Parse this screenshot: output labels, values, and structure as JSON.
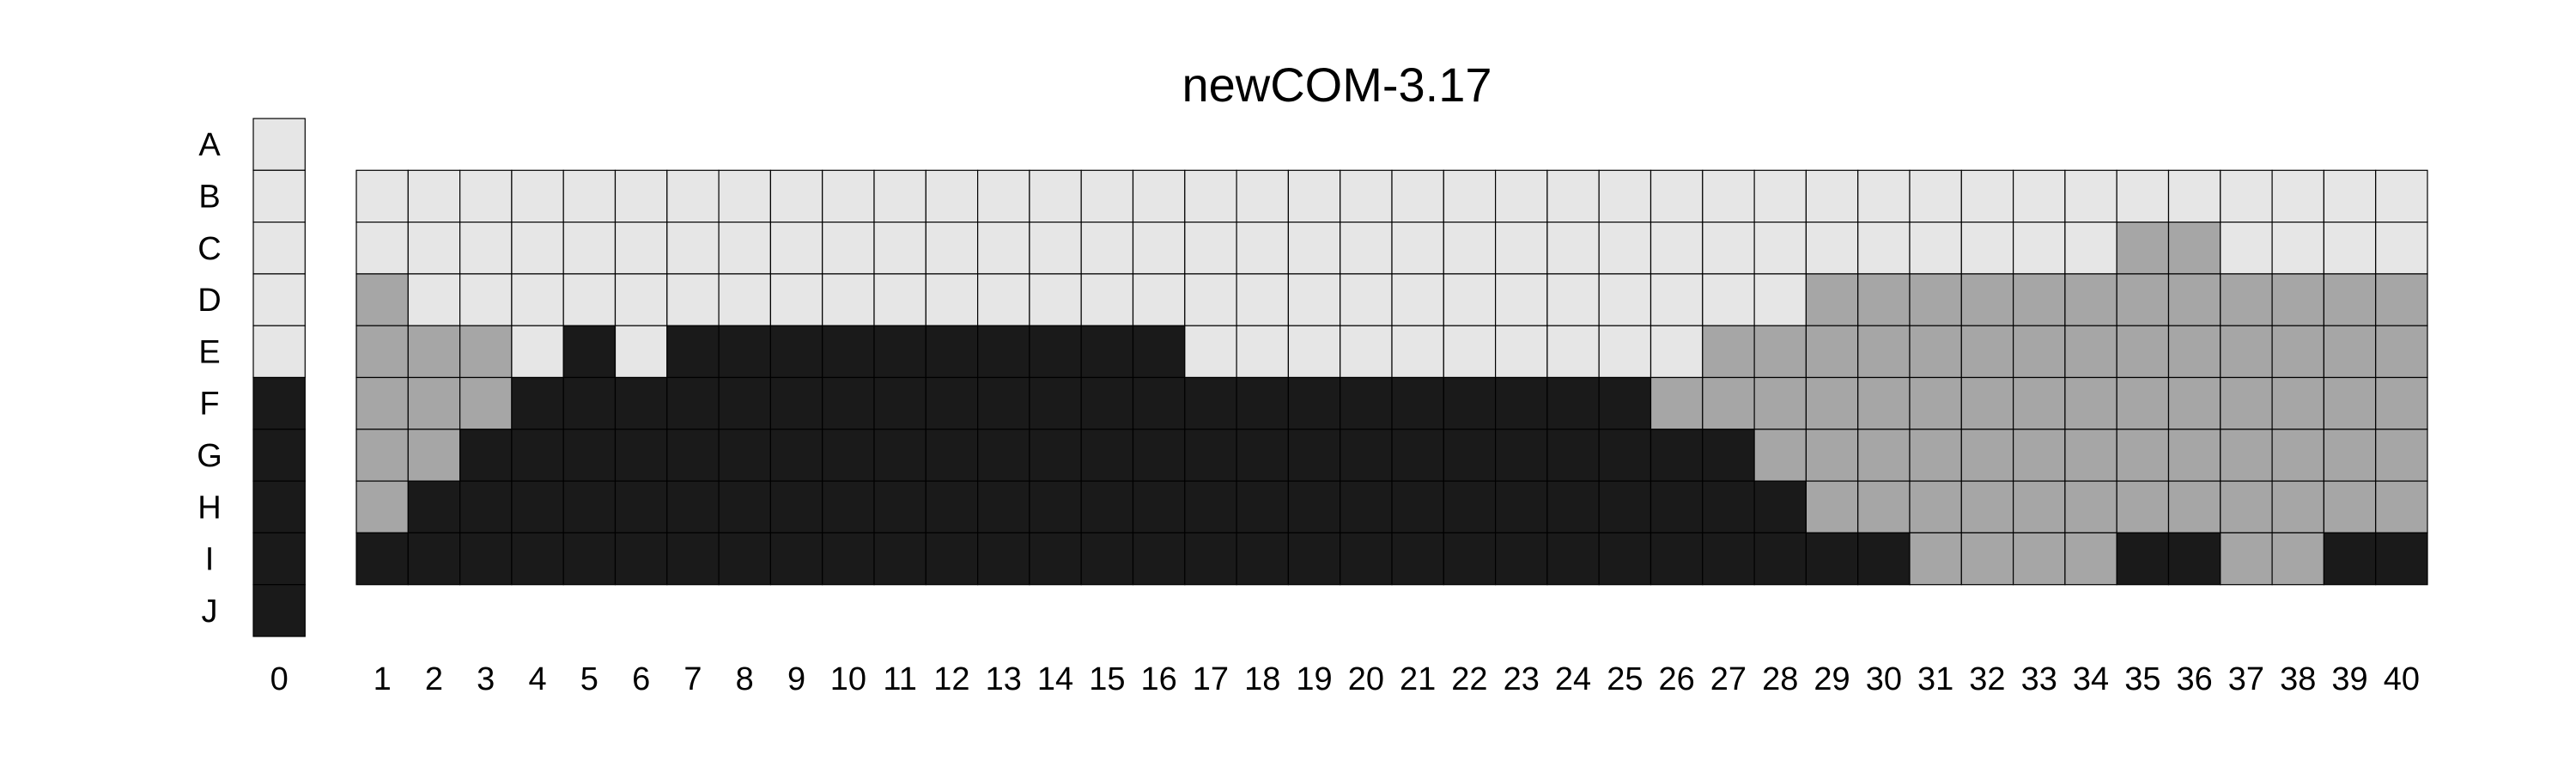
{
  "chart_data": {
    "type": "heatmap",
    "title": "newCOM-3.17",
    "row_labels": [
      "A",
      "B",
      "C",
      "D",
      "E",
      "F",
      "G",
      "H",
      "I",
      "J"
    ],
    "reference_column": {
      "label": "0",
      "values": [
        0,
        0,
        0,
        0,
        0,
        2,
        2,
        2,
        2,
        2
      ]
    },
    "column_labels": [
      "1",
      "2",
      "3",
      "4",
      "5",
      "6",
      "7",
      "8",
      "9",
      "10",
      "11",
      "12",
      "13",
      "14",
      "15",
      "16",
      "17",
      "18",
      "19",
      "20",
      "21",
      "22",
      "23",
      "24",
      "25",
      "26",
      "27",
      "28",
      "29",
      "30",
      "31",
      "32",
      "33",
      "34",
      "35",
      "36",
      "37",
      "38",
      "39",
      "40"
    ],
    "grid_rows": [
      "B",
      "C",
      "D",
      "E",
      "F",
      "G",
      "H",
      "I"
    ],
    "grid": [
      [
        0,
        0,
        0,
        0,
        0,
        0,
        0,
        0,
        0,
        0,
        0,
        0,
        0,
        0,
        0,
        0,
        0,
        0,
        0,
        0,
        0,
        0,
        0,
        0,
        0,
        0,
        0,
        0,
        0,
        0,
        0,
        0,
        0,
        0,
        0,
        0,
        0,
        0,
        0,
        0
      ],
      [
        0,
        0,
        0,
        0,
        0,
        0,
        0,
        0,
        0,
        0,
        0,
        0,
        0,
        0,
        0,
        0,
        0,
        0,
        0,
        0,
        0,
        0,
        0,
        0,
        0,
        0,
        0,
        0,
        0,
        0,
        0,
        0,
        0,
        0,
        1,
        1,
        0,
        0,
        0,
        0
      ],
      [
        1,
        0,
        0,
        0,
        0,
        0,
        0,
        0,
        0,
        0,
        0,
        0,
        0,
        0,
        0,
        0,
        0,
        0,
        0,
        0,
        0,
        0,
        0,
        0,
        0,
        0,
        0,
        0,
        1,
        1,
        1,
        1,
        1,
        1,
        1,
        1,
        1,
        1,
        1,
        1
      ],
      [
        1,
        1,
        1,
        0,
        2,
        0,
        2,
        2,
        2,
        2,
        2,
        2,
        2,
        2,
        2,
        2,
        0,
        0,
        0,
        0,
        0,
        0,
        0,
        0,
        0,
        0,
        1,
        1,
        1,
        1,
        1,
        1,
        1,
        1,
        1,
        1,
        1,
        1,
        1,
        1
      ],
      [
        1,
        1,
        1,
        2,
        2,
        2,
        2,
        2,
        2,
        2,
        2,
        2,
        2,
        2,
        2,
        2,
        2,
        2,
        2,
        2,
        2,
        2,
        2,
        2,
        2,
        1,
        1,
        1,
        1,
        1,
        1,
        1,
        1,
        1,
        1,
        1,
        1,
        1,
        1,
        1
      ],
      [
        1,
        1,
        2,
        2,
        2,
        2,
        2,
        2,
        2,
        2,
        2,
        2,
        2,
        2,
        2,
        2,
        2,
        2,
        2,
        2,
        2,
        2,
        2,
        2,
        2,
        2,
        2,
        1,
        1,
        1,
        1,
        1,
        1,
        1,
        1,
        1,
        1,
        1,
        1,
        1
      ],
      [
        1,
        2,
        2,
        2,
        2,
        2,
        2,
        2,
        2,
        2,
        2,
        2,
        2,
        2,
        2,
        2,
        2,
        2,
        2,
        2,
        2,
        2,
        2,
        2,
        2,
        2,
        2,
        2,
        1,
        1,
        1,
        1,
        1,
        1,
        1,
        1,
        1,
        1,
        1,
        1
      ],
      [
        2,
        2,
        2,
        2,
        2,
        2,
        2,
        2,
        2,
        2,
        2,
        2,
        2,
        2,
        2,
        2,
        2,
        2,
        2,
        2,
        2,
        2,
        2,
        2,
        2,
        2,
        2,
        2,
        2,
        2,
        1,
        1,
        1,
        1,
        2,
        2,
        1,
        1,
        2,
        2
      ]
    ],
    "colors": [
      "#e6e6e6",
      "#a6a6a6",
      "#1a1a1a"
    ]
  }
}
